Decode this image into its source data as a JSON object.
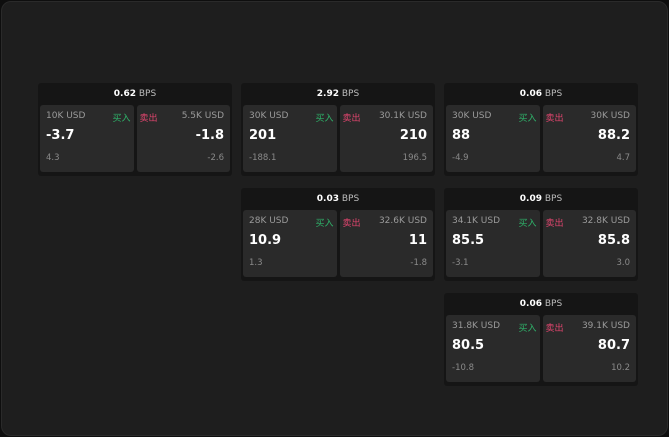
{
  "colors": {
    "buy": "#2fb36a",
    "sell": "#e0456e"
  },
  "buy_label": "买入",
  "sell_label": "卖出",
  "unit": "BPS",
  "cards": [
    {
      "spread": "0.62",
      "buy": {
        "size": "10K USD",
        "price": "-3.7",
        "change": "4.3"
      },
      "sell": {
        "size": "5.5K USD",
        "price": "-1.8",
        "change": "-2.6"
      }
    },
    {
      "spread": "2.92",
      "buy": {
        "size": "30K USD",
        "price": "201",
        "change": "-188.1"
      },
      "sell": {
        "size": "30.1K USD",
        "price": "210",
        "change": "196.5"
      }
    },
    {
      "spread": "0.06",
      "buy": {
        "size": "30K USD",
        "price": "88",
        "change": "-4.9"
      },
      "sell": {
        "size": "30K USD",
        "price": "88.2",
        "change": "4.7"
      }
    },
    {
      "spread": "0.03",
      "buy": {
        "size": "28K USD",
        "price": "10.9",
        "change": "1.3"
      },
      "sell": {
        "size": "32.6K USD",
        "price": "11",
        "change": "-1.8"
      }
    },
    {
      "spread": "0.09",
      "buy": {
        "size": "34.1K USD",
        "price": "85.5",
        "change": "-3.1"
      },
      "sell": {
        "size": "32.8K USD",
        "price": "85.8",
        "change": "3.0"
      }
    },
    {
      "spread": "0.06",
      "buy": {
        "size": "31.8K USD",
        "price": "80.5",
        "change": "-10.8"
      },
      "sell": {
        "size": "39.1K USD",
        "price": "80.7",
        "change": "10.2"
      }
    }
  ]
}
